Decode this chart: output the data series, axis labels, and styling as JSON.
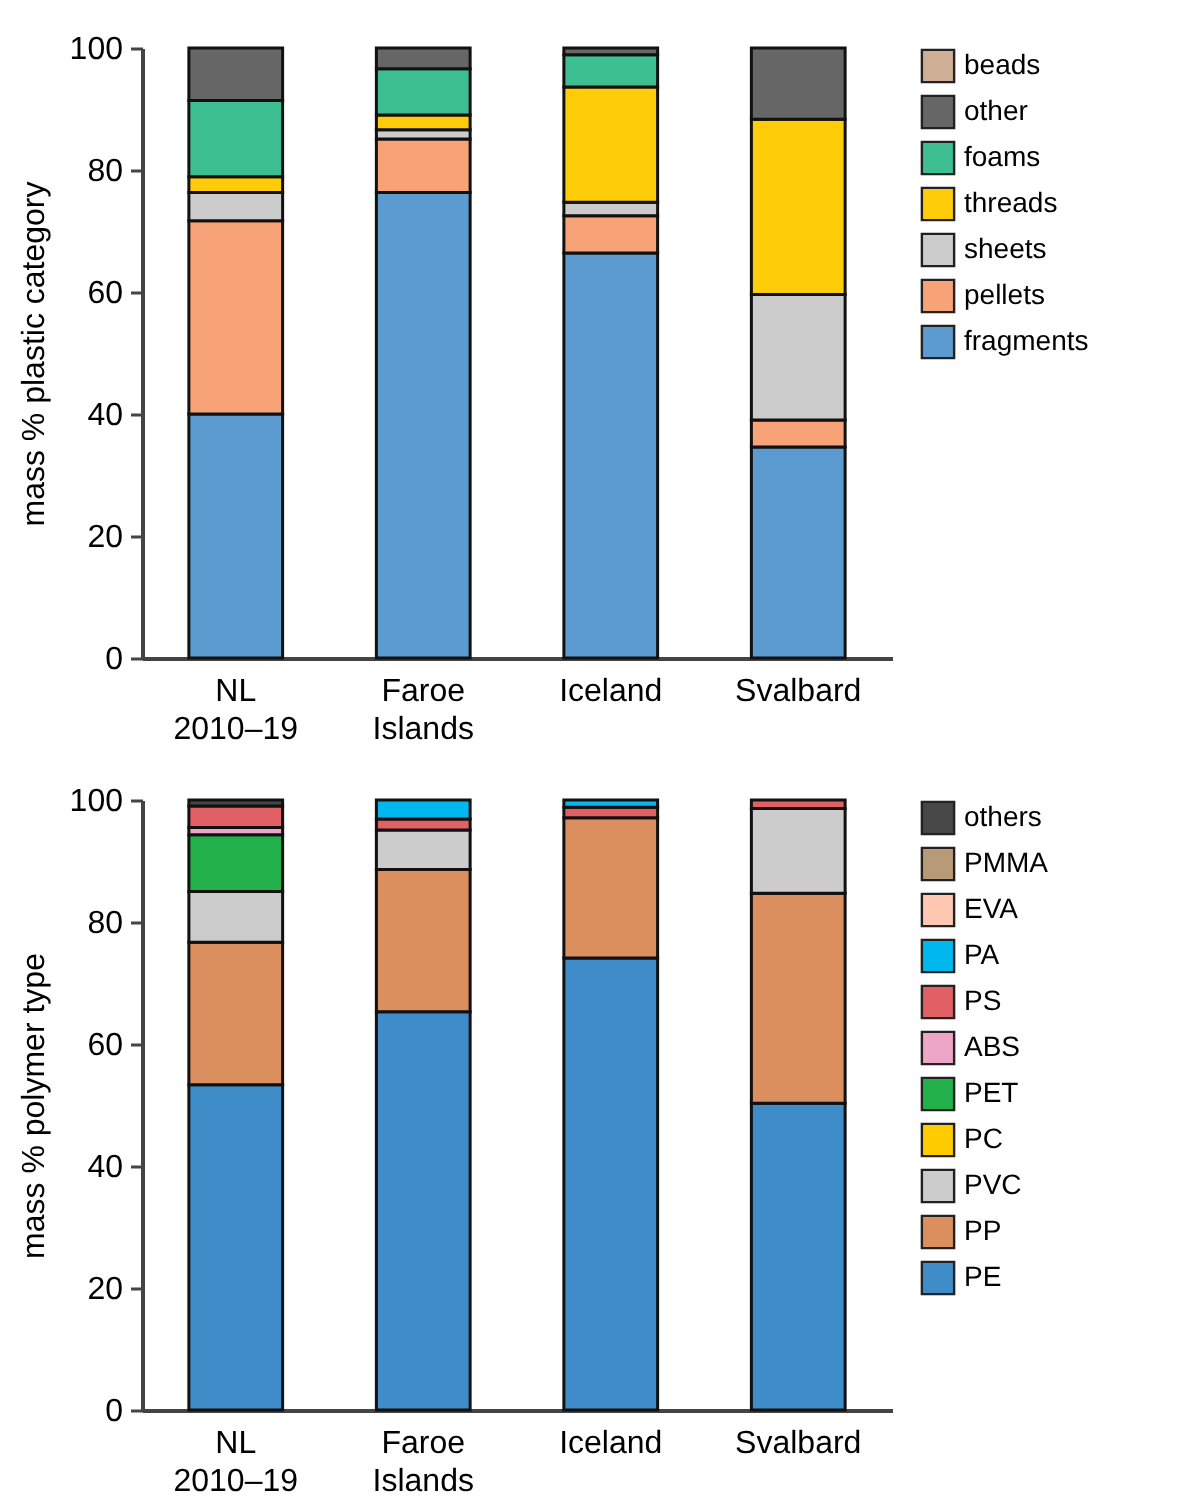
{
  "chart_data": [
    {
      "type": "bar",
      "stacked": true,
      "ylabel": "mass % plastic category",
      "categories": [
        "NL 2010–19",
        "Faroe Islands",
        "Iceland",
        "Svalbard"
      ],
      "ylim": [
        0,
        100
      ],
      "yticks": [
        0,
        20,
        40,
        60,
        80,
        100
      ],
      "legend": "right",
      "series": [
        {
          "name": "fragments",
          "color": "#5b9bd0",
          "values": [
            40,
            76.3,
            66.4,
            34.6
          ]
        },
        {
          "name": "pellets",
          "color": "#f7a377",
          "values": [
            31.7,
            8.8,
            6.1,
            4.4
          ]
        },
        {
          "name": "sheets",
          "color": "#cccccc",
          "values": [
            4.6,
            1.5,
            2.2,
            20.6
          ]
        },
        {
          "name": "threads",
          "color": "#ffcc0a",
          "values": [
            2.6,
            2.4,
            18.9,
            28.7
          ]
        },
        {
          "name": "foams",
          "color": "#3dbf92",
          "values": [
            12.5,
            7.6,
            5.3,
            null
          ]
        },
        {
          "name": "other",
          "color": "#666666",
          "values": [
            8.6,
            3.4,
            1.1,
            11.7
          ]
        },
        {
          "name": "beads",
          "color": "#cfb097",
          "values": [
            null,
            null,
            null,
            null
          ]
        }
      ]
    },
    {
      "type": "bar",
      "stacked": true,
      "ylabel": "mass % polymer type",
      "categories": [
        "NL 2010–19",
        "Faroe Islands",
        "Iceland",
        "Svalbard"
      ],
      "ylim": [
        0,
        100
      ],
      "yticks": [
        0,
        20,
        40,
        60,
        80,
        100
      ],
      "legend": "right",
      "series": [
        {
          "name": "PE",
          "color": "#3f8dc8",
          "values": [
            53.3,
            65.3,
            74.1,
            50.3
          ]
        },
        {
          "name": "PP",
          "color": "#db8e5e",
          "values": [
            23.4,
            23.3,
            23.0,
            34.4
          ]
        },
        {
          "name": "PVC",
          "color": "#cccccc",
          "values": [
            8.3,
            6.5,
            null,
            13.9
          ]
        },
        {
          "name": "PC",
          "color": "#ffcc00",
          "values": [
            null,
            null,
            null,
            null
          ]
        },
        {
          "name": "PET",
          "color": "#22b04b",
          "values": [
            9.3,
            null,
            null,
            null
          ]
        },
        {
          "name": "ABS",
          "color": "#eea6c8",
          "values": [
            1.2,
            null,
            null,
            null
          ]
        },
        {
          "name": "PS",
          "color": "#e06066",
          "values": [
            3.5,
            1.8,
            1.7,
            1.4
          ]
        },
        {
          "name": "PA",
          "color": "#00b8ee",
          "values": [
            null,
            3.1,
            1.2,
            null
          ]
        },
        {
          "name": "EVA",
          "color": "#fec8b3",
          "values": [
            null,
            null,
            null,
            null
          ]
        },
        {
          "name": "PMMA",
          "color": "#b89a78",
          "values": [
            null,
            null,
            null,
            null
          ]
        },
        {
          "name": "others",
          "color": "#474747",
          "values": [
            1.0,
            null,
            null,
            null
          ]
        }
      ]
    }
  ]
}
